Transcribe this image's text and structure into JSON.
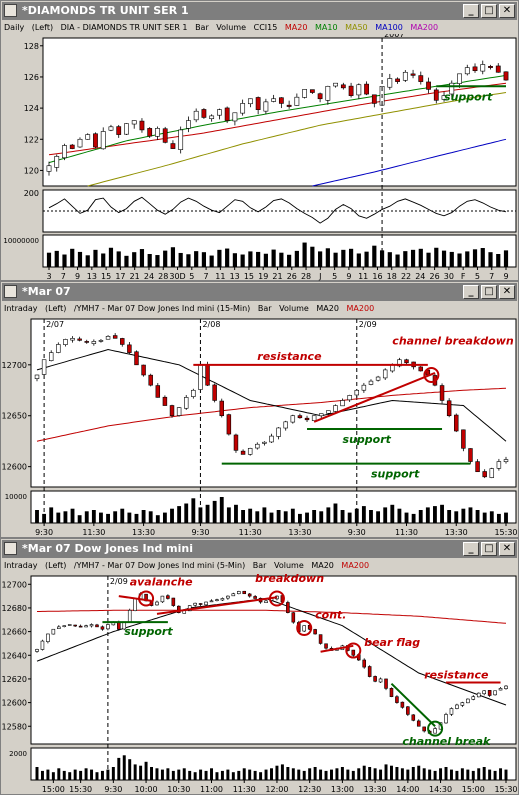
{
  "windows": [
    {
      "title": "DIAMONDS TR UNIT SER 1",
      "info": {
        "interval": "Daily",
        "axis": "(Left)",
        "symbol": "DIA - DIAMONDS TR UNIT SER 1",
        "type": "Bar",
        "volume": "Volume",
        "i1": "CCI15",
        "i2": "MA20",
        "i3": "MA10",
        "i4": "MA50",
        "i5": "MA100",
        "i6": "MA200"
      },
      "year_marker": "2007",
      "volume_label": "10000000",
      "cci_label": "200",
      "annotations": {
        "support": "support"
      }
    },
    {
      "title": "Mar 07",
      "info": {
        "interval": "Intraday",
        "axis": "(Left)",
        "symbol": "/YMH7 - Mar 07  Dow Jones Ind mini  (15-Min)",
        "type": "Bar",
        "volume": "Volume",
        "i1": "MA20",
        "i2": "MA200"
      },
      "volume_label": "10000",
      "annotations": {
        "resistance": "resistance",
        "channel_breakdown": "channel breakdown",
        "support1": "support",
        "support2": "support"
      }
    },
    {
      "title": "Mar 07  Dow Jones Ind mini",
      "info": {
        "interval": "Intraday",
        "axis": "(Left)",
        "symbol": "/YMH7 - Mar 07  Dow Jones Ind mini  (5-Min)",
        "type": "Bar",
        "volume": "Volume",
        "i1": "MA20",
        "i2": "MA200"
      },
      "volume_label": "2000",
      "annotations": {
        "avalanche": "avalanche",
        "breakdown": "breakdown",
        "cont": "cont.",
        "bear_flag": "bear flag",
        "resistance": "resistance",
        "support": "support",
        "channel_break": "channel break"
      }
    }
  ],
  "colors": {
    "ma20": "#c00000",
    "ma10": "#008000",
    "ma50": "#909000",
    "ma100": "#0000c0",
    "ma200": "#b000b0",
    "annot_red": "#c00000",
    "annot_green": "#006400"
  },
  "chart_data": [
    {
      "type": "bar",
      "title": "DIAMONDS TR UNIT SER 1",
      "interval": "Daily",
      "ylim": [
        119,
        128.5
      ],
      "yticks": [
        120,
        122,
        124,
        126,
        128
      ],
      "xlabels": [
        "3",
        "7",
        "9",
        "13",
        "15",
        "17",
        "21",
        "24",
        "28",
        "30D",
        "5",
        "7",
        "11",
        "13",
        "15",
        "19",
        "21",
        "26",
        "28",
        "J",
        "5",
        "9",
        "11",
        "16",
        "18",
        "22",
        "24",
        "26",
        "30",
        "F",
        "5",
        "7",
        "9"
      ],
      "closes": [
        120.3,
        120.9,
        121.6,
        121.4,
        122.0,
        122.3,
        121.5,
        122.5,
        122.8,
        122.3,
        123.0,
        123.2,
        122.6,
        122.2,
        122.7,
        121.8,
        121.4,
        122.6,
        123.2,
        123.8,
        123.4,
        123.5,
        123.9,
        123.2,
        123.7,
        124.3,
        124.6,
        123.9,
        124.4,
        124.6,
        124.3,
        124.1,
        124.7,
        125.2,
        125.0,
        124.6,
        125.4,
        125.6,
        125.3,
        124.8,
        125.5,
        124.9,
        124.3,
        125.4,
        125.9,
        125.7,
        126.3,
        126.1,
        125.7,
        125.2,
        124.5,
        124.8,
        125.6,
        126.2,
        126.6,
        126.4,
        126.8,
        126.6,
        126.3,
        125.8
      ],
      "ma20": {
        "x": [
          0,
          10,
          20,
          30,
          40,
          50,
          59
        ],
        "y": [
          121.0,
          121.7,
          122.4,
          123.3,
          124.2,
          125.0,
          125.6
        ]
      },
      "ma10": {
        "x": [
          0,
          10,
          20,
          30,
          40,
          50,
          59
        ],
        "y": [
          120.5,
          121.9,
          122.9,
          123.8,
          124.6,
          125.4,
          126.1
        ]
      },
      "ma50": {
        "x": [
          5,
          15,
          25,
          35,
          45,
          55,
          59
        ],
        "y": [
          119.0,
          120.3,
          121.7,
          122.9,
          123.8,
          124.7,
          125.0
        ]
      },
      "ma100": {
        "x": [
          34,
          42,
          50,
          59
        ],
        "y": [
          119.0,
          119.9,
          120.9,
          122.0
        ]
      },
      "cci": {
        "values": [
          40,
          90,
          150,
          60,
          -30,
          10,
          140,
          160,
          50,
          -20,
          30,
          120,
          170,
          90,
          10,
          -40,
          20,
          110,
          160,
          120,
          60,
          10,
          -20,
          60,
          140,
          120,
          40,
          -10,
          50,
          130,
          150,
          100,
          30,
          -30,
          -80,
          -150,
          -90,
          20,
          80,
          30,
          -60,
          -90,
          -40,
          20,
          60,
          120,
          150,
          110,
          70,
          20,
          -30,
          -60,
          -20,
          60,
          120,
          140,
          100,
          50,
          10,
          -10
        ]
      },
      "volume": [
        0.55,
        0.62,
        0.48,
        0.7,
        0.58,
        0.45,
        0.66,
        0.52,
        0.74,
        0.6,
        0.43,
        0.57,
        0.69,
        0.5,
        0.46,
        0.63,
        0.76,
        0.54,
        0.49,
        0.61,
        0.57,
        0.44,
        0.66,
        0.71,
        0.53,
        0.48,
        0.6,
        0.58,
        0.51,
        0.67,
        0.55,
        0.47,
        0.62,
        0.94,
        0.78,
        0.6,
        0.72,
        0.55,
        0.66,
        0.7,
        0.52,
        0.59,
        0.82,
        0.64,
        0.57,
        0.48,
        0.61,
        0.66,
        0.7,
        0.55,
        0.74,
        0.63,
        0.58,
        0.52,
        0.6,
        0.68,
        0.73,
        0.57,
        0.5,
        0.64
      ],
      "annotations": [
        {
          "text": "support",
          "price": 125.4
        }
      ]
    },
    {
      "type": "bar",
      "title": "Mar 07 Dow Jones Ind mini (15-Min)",
      "interval": "15-Min",
      "ylim": [
        12580,
        12745
      ],
      "yticks": [
        12600,
        12650,
        12700
      ],
      "dates": [
        "2/07",
        "2/08",
        "2/09"
      ],
      "xlabels": [
        "9:30",
        "11:30",
        "13:30",
        "9:30",
        "11:30",
        "13:30",
        "9:30",
        "11:30",
        "13:30",
        "15:30"
      ],
      "closes": [
        12690,
        12705,
        12712,
        12720,
        12725,
        12726,
        12724,
        12722,
        12723,
        12724,
        12728,
        12726,
        12720,
        12712,
        12700,
        12690,
        12680,
        12668,
        12660,
        12650,
        12658,
        12668,
        12675,
        12700,
        12680,
        12665,
        12650,
        12632,
        12616,
        12612,
        12618,
        12622,
        12624,
        12630,
        12638,
        12644,
        12650,
        12648,
        12646,
        12650,
        12652,
        12655,
        12660,
        12665,
        12670,
        12675,
        12680,
        12684,
        12688,
        12695,
        12700,
        12705,
        12702,
        12698,
        12694,
        12690,
        12680,
        12665,
        12650,
        12635,
        12618,
        12605,
        12595,
        12590,
        12598,
        12605,
        12607
      ],
      "ma20": {
        "x": [
          0,
          10,
          20,
          30,
          40,
          50,
          60,
          66
        ],
        "y": [
          12695,
          12715,
          12700,
          12665,
          12650,
          12665,
          12660,
          12625
        ]
      },
      "ma200": {
        "x": [
          0,
          10,
          20,
          30,
          40,
          50,
          60,
          66
        ],
        "y": [
          12625,
          12640,
          12650,
          12658,
          12663,
          12670,
          12675,
          12677
        ]
      },
      "volume": [
        0.5,
        0.35,
        0.6,
        0.4,
        0.45,
        0.55,
        0.3,
        0.45,
        0.5,
        0.4,
        0.35,
        0.45,
        0.55,
        0.4,
        0.35,
        0.5,
        0.45,
        0.3,
        0.4,
        0.55,
        0.65,
        0.75,
        0.95,
        0.6,
        0.7,
        0.85,
        1.0,
        0.6,
        0.7,
        0.5,
        0.55,
        0.45,
        0.6,
        0.4,
        0.5,
        0.45,
        0.55,
        0.35,
        0.4,
        0.5,
        0.45,
        0.6,
        0.75,
        0.5,
        0.4,
        0.55,
        0.65,
        0.5,
        0.45,
        0.6,
        0.7,
        0.55,
        0.4,
        0.35,
        0.5,
        0.6,
        0.65,
        0.7,
        0.5,
        0.45,
        0.55,
        0.6,
        0.5,
        0.4,
        0.45,
        0.35,
        0.4
      ],
      "annotations": [
        {
          "text": "resistance",
          "price": 12700
        },
        {
          "text": "channel breakdown"
        },
        {
          "text": "support",
          "price": 12637
        },
        {
          "text": "support",
          "price": 12603
        }
      ]
    },
    {
      "type": "bar",
      "title": "Mar 07 Dow Jones Ind mini (5-Min)",
      "interval": "5-Min",
      "ylim": [
        12565,
        12707
      ],
      "yticks": [
        12580,
        12600,
        12620,
        12640,
        12660,
        12680,
        12700
      ],
      "dates": [
        "2/09"
      ],
      "xlabels": [
        "15:00",
        "15:30",
        "9:30",
        "10:00",
        "10:30",
        "11:00",
        "11:30",
        "12:00",
        "12:30",
        "13:00",
        "13:30",
        "14:00",
        "14:30",
        "15:00",
        "15:30"
      ],
      "closes": [
        12645,
        12652,
        12658,
        12662,
        12664,
        12665,
        12666,
        12665,
        12664,
        12665,
        12666,
        12664,
        12662,
        12666,
        12668,
        12662,
        12668,
        12678,
        12688,
        12692,
        12686,
        12682,
        12685,
        12690,
        12688,
        12682,
        12676,
        12678,
        12682,
        12684,
        12683,
        12685,
        12686,
        12687,
        12688,
        12690,
        12692,
        12694,
        12692,
        12690,
        12688,
        12685,
        12686,
        12688,
        12690,
        12685,
        12676,
        12668,
        12660,
        12665,
        12662,
        12658,
        12650,
        12646,
        12644,
        12645,
        12648,
        12644,
        12640,
        12636,
        12630,
        12622,
        12618,
        12620,
        12612,
        12605,
        12600,
        12596,
        12590,
        12585,
        12580,
        12576,
        12574,
        12578,
        12583,
        12590,
        12595,
        12598,
        12600,
        12603,
        12605,
        12608,
        12610,
        12606,
        12610,
        12612,
        12614
      ],
      "ma20": {
        "x": [
          0,
          14,
          28,
          42,
          56,
          70,
          86
        ],
        "y": [
          12635,
          12660,
          12680,
          12688,
          12665,
          12625,
          12598
        ]
      },
      "ma200": {
        "x": [
          0,
          14,
          28,
          42,
          56,
          70,
          86
        ],
        "y": [
          12677,
          12678,
          12678,
          12678,
          12676,
          12673,
          12667
        ]
      },
      "volume": [
        0.5,
        0.35,
        0.4,
        0.3,
        0.45,
        0.35,
        0.3,
        0.4,
        0.35,
        0.45,
        0.4,
        0.3,
        0.35,
        0.4,
        0.5,
        0.85,
        0.95,
        0.8,
        0.6,
        0.55,
        0.7,
        0.5,
        0.45,
        0.4,
        0.45,
        0.35,
        0.4,
        0.45,
        0.35,
        0.3,
        0.4,
        0.35,
        0.45,
        0.3,
        0.35,
        0.4,
        0.3,
        0.35,
        0.45,
        0.4,
        0.35,
        0.3,
        0.4,
        0.45,
        0.55,
        0.6,
        0.5,
        0.45,
        0.4,
        0.35,
        0.45,
        0.5,
        0.4,
        0.35,
        0.4,
        0.45,
        0.5,
        0.4,
        0.35,
        0.45,
        0.55,
        0.5,
        0.45,
        0.4,
        0.6,
        0.55,
        0.5,
        0.45,
        0.4,
        0.5,
        0.55,
        0.45,
        0.4,
        0.35,
        0.45,
        0.5,
        0.4,
        0.35,
        0.45,
        0.4,
        0.35,
        0.45,
        0.5,
        0.4,
        0.35,
        0.45,
        0.4
      ],
      "annotations": [
        {
          "text": "avalanche"
        },
        {
          "text": "breakdown"
        },
        {
          "text": "cont."
        },
        {
          "text": "bear flag"
        },
        {
          "text": "resistance",
          "price": 12617
        },
        {
          "text": "support",
          "price": 12668
        },
        {
          "text": "channel break"
        }
      ]
    }
  ]
}
